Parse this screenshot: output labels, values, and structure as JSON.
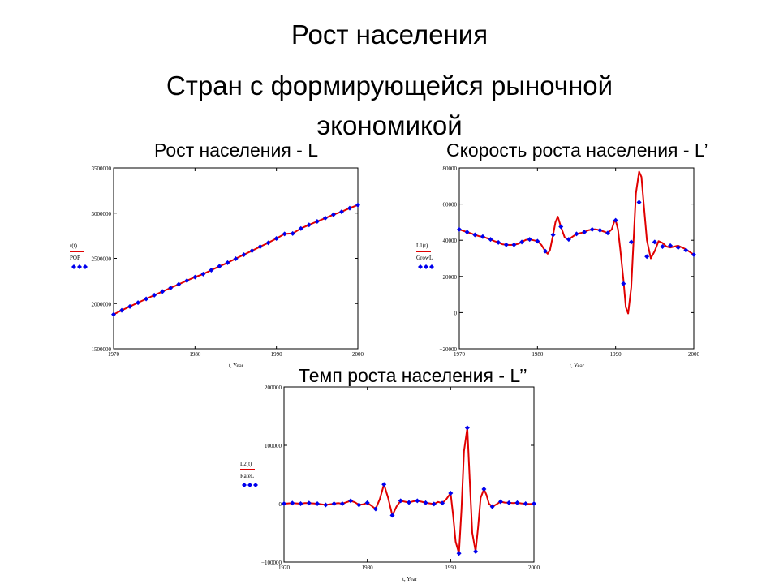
{
  "slide": {
    "title": "Рост населения",
    "subtitle_line1": "Стран с формирующейся рыночной",
    "subtitle_line2": "экономикой"
  },
  "colors": {
    "line": "#e00000",
    "points": "#0000ee",
    "axis": "#000000",
    "grid": "#000000"
  },
  "chart_data": [
    {
      "type": "line",
      "title": "Рост населения - L",
      "xlabel": "t, Year",
      "xlim": [
        1970,
        2000
      ],
      "ylim": [
        1500000,
        3500000
      ],
      "xticks": [
        1970,
        1980,
        1990,
        2000
      ],
      "yticks": [
        1500000,
        2000000,
        2500000,
        3000000,
        3500000
      ],
      "legend": [
        "r(t)",
        "POP"
      ],
      "series": [
        {
          "name": "r(t)",
          "style": "line",
          "x": [
            1970,
            1971,
            1972,
            1973,
            1974,
            1975,
            1976,
            1977,
            1978,
            1979,
            1980,
            1981,
            1982,
            1983,
            1984,
            1985,
            1986,
            1987,
            1988,
            1989,
            1990,
            1991,
            1992,
            1993,
            1994,
            1995,
            1996,
            1997,
            1998,
            1999,
            2000
          ],
          "values": [
            1880000,
            1925000,
            1968000,
            2010000,
            2052000,
            2093000,
            2133000,
            2173000,
            2213000,
            2253000,
            2293000,
            2326000,
            2370000,
            2412000,
            2452000,
            2496000,
            2540000,
            2584000,
            2629000,
            2672000,
            2720000,
            2770000,
            2775000,
            2830000,
            2870000,
            2908000,
            2945000,
            2983000,
            3015000,
            3055000,
            3090000
          ]
        },
        {
          "name": "POP",
          "style": "points",
          "x": [
            1970,
            1971,
            1972,
            1973,
            1974,
            1975,
            1976,
            1977,
            1978,
            1979,
            1980,
            1981,
            1982,
            1983,
            1984,
            1985,
            1986,
            1987,
            1988,
            1989,
            1990,
            1991,
            1992,
            1993,
            1994,
            1995,
            1996,
            1997,
            1998,
            1999,
            2000
          ],
          "values": [
            1880000,
            1925000,
            1968000,
            2010000,
            2052000,
            2093000,
            2133000,
            2173000,
            2213000,
            2253000,
            2293000,
            2326000,
            2370000,
            2412000,
            2452000,
            2496000,
            2540000,
            2584000,
            2629000,
            2672000,
            2720000,
            2770000,
            2775000,
            2830000,
            2870000,
            2908000,
            2945000,
            2983000,
            3015000,
            3055000,
            3090000
          ]
        }
      ]
    },
    {
      "type": "line",
      "title": "Скорость роста населения - L’",
      "xlabel": "t, Year",
      "xlim": [
        1970,
        2000
      ],
      "ylim": [
        -20000,
        80000
      ],
      "xticks": [
        1970,
        1980,
        1990,
        2000
      ],
      "yticks": [
        -20000,
        0,
        20000,
        40000,
        60000,
        80000
      ],
      "legend": [
        "L1(t)",
        "GrowL"
      ],
      "series": [
        {
          "name": "L1(t)",
          "style": "line",
          "x": [
            1970,
            1970.5,
            1971,
            1971.5,
            1972,
            1972.5,
            1973,
            1973.5,
            1974,
            1974.5,
            1975,
            1975.5,
            1976,
            1976.5,
            1977,
            1977.5,
            1978,
            1978.5,
            1979,
            1979.5,
            1980,
            1980.5,
            1981,
            1981.3,
            1981.6,
            1982,
            1982.3,
            1982.6,
            1983,
            1983.5,
            1984,
            1984.5,
            1985,
            1985.5,
            1986,
            1986.5,
            1987,
            1987.5,
            1988,
            1988.5,
            1989,
            1989.5,
            1989.8,
            1990,
            1990.3,
            1990.6,
            1991,
            1991.3,
            1991.6,
            1992,
            1992.3,
            1992.6,
            1993,
            1993.3,
            1993.6,
            1994,
            1994.5,
            1995,
            1995.5,
            1996,
            1996.5,
            1997,
            1997.5,
            1998,
            1998.5,
            1999,
            1999.5,
            2000
          ],
          "values": [
            46000,
            45200,
            44500,
            43800,
            43000,
            42300,
            42000,
            41200,
            40500,
            39500,
            38800,
            37800,
            37500,
            37400,
            37500,
            38000,
            39000,
            40200,
            40500,
            40000,
            39500,
            37500,
            34000,
            32500,
            34500,
            43000,
            50000,
            53000,
            47500,
            41500,
            40500,
            42000,
            43500,
            44000,
            44500,
            45500,
            46000,
            46000,
            45500,
            44800,
            44000,
            46000,
            50000,
            51000,
            46000,
            35000,
            18000,
            3000,
            -500,
            14000,
            40000,
            66000,
            78000,
            75000,
            60000,
            40000,
            30000,
            34000,
            39500,
            38500,
            36500,
            36000,
            36500,
            37000,
            36000,
            35000,
            33500,
            32000
          ]
        },
        {
          "name": "GrowL",
          "style": "points",
          "x": [
            1970,
            1971,
            1972,
            1973,
            1974,
            1975,
            1976,
            1977,
            1978,
            1979,
            1980,
            1981,
            1982,
            1983,
            1984,
            1985,
            1986,
            1987,
            1988,
            1989,
            1990,
            1991,
            1992,
            1993,
            1994,
            1995,
            1996,
            1997,
            1998,
            1999,
            2000
          ],
          "values": [
            46000,
            44500,
            43000,
            42000,
            40500,
            38800,
            37500,
            37500,
            39000,
            40500,
            39500,
            34000,
            43000,
            47500,
            40500,
            43500,
            44500,
            46000,
            45500,
            44000,
            51000,
            16000,
            39000,
            61000,
            31000,
            39000,
            36500,
            37000,
            36000,
            34500,
            32000
          ]
        }
      ]
    },
    {
      "type": "line",
      "title": "Темп роста населения - L’’",
      "xlabel": "t, Year",
      "xlim": [
        1970,
        2000
      ],
      "ylim": [
        -100000,
        200000
      ],
      "xticks": [
        1970,
        1980,
        1990,
        2000
      ],
      "yticks": [
        -100000,
        0,
        100000,
        200000
      ],
      "legend": [
        "L2(t)",
        "RateL"
      ],
      "series": [
        {
          "name": "L2(t)",
          "style": "line",
          "x": [
            1970,
            1970.5,
            1971,
            1971.5,
            1972,
            1972.5,
            1973,
            1973.5,
            1974,
            1974.5,
            1975,
            1975.5,
            1976,
            1976.5,
            1977,
            1977.5,
            1978,
            1978.5,
            1979,
            1979.5,
            1980,
            1980.5,
            1981,
            1981.5,
            1982,
            1982.5,
            1983,
            1983.5,
            1984,
            1984.5,
            1985,
            1985.5,
            1986,
            1986.5,
            1987,
            1987.5,
            1988,
            1988.5,
            1989,
            1989.5,
            1990,
            1990.3,
            1990.6,
            1991,
            1991.3,
            1991.6,
            1992,
            1992.3,
            1992.6,
            1993,
            1993.3,
            1993.6,
            1994,
            1994.3,
            1994.6,
            1995,
            1995.5,
            1996,
            1996.5,
            1997,
            1997.5,
            1998,
            1998.5,
            1999,
            1999.5,
            2000
          ],
          "values": [
            0,
            500,
            1000,
            500,
            0,
            1000,
            1000,
            500,
            0,
            -1000,
            -2000,
            -1000,
            0,
            1000,
            0,
            2500,
            5000,
            2500,
            -2000,
            -1000,
            1500,
            -3500,
            -9000,
            8000,
            33000,
            10000,
            -20000,
            -5000,
            5000,
            3500,
            2000,
            4000,
            5000,
            3500,
            1500,
            500,
            -500,
            3000,
            1000,
            8000,
            18000,
            -20000,
            -65000,
            -85000,
            -10000,
            90000,
            130000,
            40000,
            -50000,
            -82000,
            -40000,
            10000,
            25000,
            15000,
            0,
            -5000,
            -1000,
            3500,
            2000,
            1500,
            1000,
            1500,
            500,
            0,
            -500,
            0
          ]
        },
        {
          "name": "RateL",
          "style": "points",
          "x": [
            1970,
            1971,
            1972,
            1973,
            1974,
            1975,
            1976,
            1977,
            1978,
            1979,
            1980,
            1981,
            1982,
            1983,
            1984,
            1985,
            1986,
            1987,
            1988,
            1989,
            1990,
            1991,
            1992,
            1993,
            1994,
            1995,
            1996,
            1997,
            1998,
            1999,
            2000
          ],
          "values": [
            0,
            1000,
            0,
            1000,
            0,
            -2000,
            0,
            0,
            5000,
            -2000,
            1500,
            -9000,
            33000,
            -20000,
            5000,
            2000,
            5000,
            1500,
            -500,
            1000,
            18000,
            -85000,
            130000,
            -82000,
            25000,
            -5000,
            3500,
            1500,
            1500,
            0,
            0
          ]
        }
      ]
    }
  ]
}
